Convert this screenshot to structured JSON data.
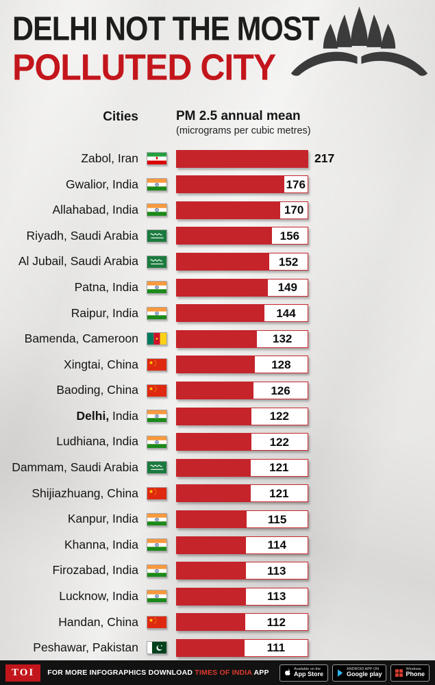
{
  "header": {
    "title_line1": "DELHI NOT THE MOST",
    "title_line2": "POLLUTED CITY"
  },
  "columns": {
    "cities_label": "Cities",
    "metric_label": "PM 2.5 annual mean",
    "metric_sublabel": "(micrograms per cubic metres)"
  },
  "chart_data": {
    "type": "bar",
    "orientation": "horizontal",
    "title": "PM 2.5 annual mean by city",
    "value_label": "PM 2.5 annual mean",
    "value_unit": "micrograms per cubic metres",
    "xlim": [
      0,
      217
    ],
    "max_value": 217,
    "bar_color": "#c5242b",
    "rows": [
      {
        "city": "Zabol",
        "country": "Iran",
        "value": 217,
        "flag": "iran",
        "bold": false
      },
      {
        "city": "Gwalior",
        "country": "India",
        "value": 176,
        "flag": "india",
        "bold": false
      },
      {
        "city": "Allahabad",
        "country": "India",
        "value": 170,
        "flag": "india",
        "bold": false
      },
      {
        "city": "Riyadh",
        "country": "Saudi Arabia",
        "value": 156,
        "flag": "saudi",
        "bold": false
      },
      {
        "city": "Al Jubail",
        "country": "Saudi Arabia",
        "value": 152,
        "flag": "saudi",
        "bold": false
      },
      {
        "city": "Patna",
        "country": "India",
        "value": 149,
        "flag": "india",
        "bold": false
      },
      {
        "city": "Raipur",
        "country": "India",
        "value": 144,
        "flag": "india",
        "bold": false
      },
      {
        "city": "Bamenda",
        "country": "Cameroon",
        "value": 132,
        "flag": "cameroon",
        "bold": false
      },
      {
        "city": "Xingtai",
        "country": "China",
        "value": 128,
        "flag": "china",
        "bold": false
      },
      {
        "city": "Baoding",
        "country": "China",
        "value": 126,
        "flag": "china",
        "bold": false
      },
      {
        "city": "Delhi",
        "country": "India",
        "value": 122,
        "flag": "india",
        "bold": true
      },
      {
        "city": "Ludhiana",
        "country": "India",
        "value": 122,
        "flag": "india",
        "bold": false
      },
      {
        "city": "Dammam",
        "country": "Saudi Arabia",
        "value": 121,
        "flag": "saudi",
        "bold": false
      },
      {
        "city": "Shijiazhuang",
        "country": "China",
        "value": 121,
        "flag": "china",
        "bold": false
      },
      {
        "city": "Kanpur",
        "country": "India",
        "value": 115,
        "flag": "india",
        "bold": false
      },
      {
        "city": "Khanna",
        "country": "India",
        "value": 114,
        "flag": "india",
        "bold": false
      },
      {
        "city": "Firozabad",
        "country": "India",
        "value": 113,
        "flag": "india",
        "bold": false
      },
      {
        "city": "Lucknow",
        "country": "India",
        "value": 113,
        "flag": "india",
        "bold": false
      },
      {
        "city": "Handan",
        "country": "China",
        "value": 112,
        "flag": "china",
        "bold": false
      },
      {
        "city": "Peshawar",
        "country": "Pakistan",
        "value": 111,
        "flag": "pakistan",
        "bold": false
      }
    ]
  },
  "footer": {
    "logo": "TOI",
    "text1": "FOR MORE  INFOGRAPHICS DOWNLOAD ",
    "text_brand": "TIMES OF INDIA",
    "text2": " APP",
    "badges": [
      {
        "line1": "Available on the",
        "line2": "App Store"
      },
      {
        "line1": "ANDROID APP ON",
        "line2": "Google play"
      },
      {
        "line1": "Windows",
        "line2": "Phone"
      }
    ]
  },
  "colors": {
    "accent_red": "#c3161c",
    "bar_red": "#c5242b",
    "page_background": "#e8e7e5",
    "footer_background": "#121212"
  }
}
